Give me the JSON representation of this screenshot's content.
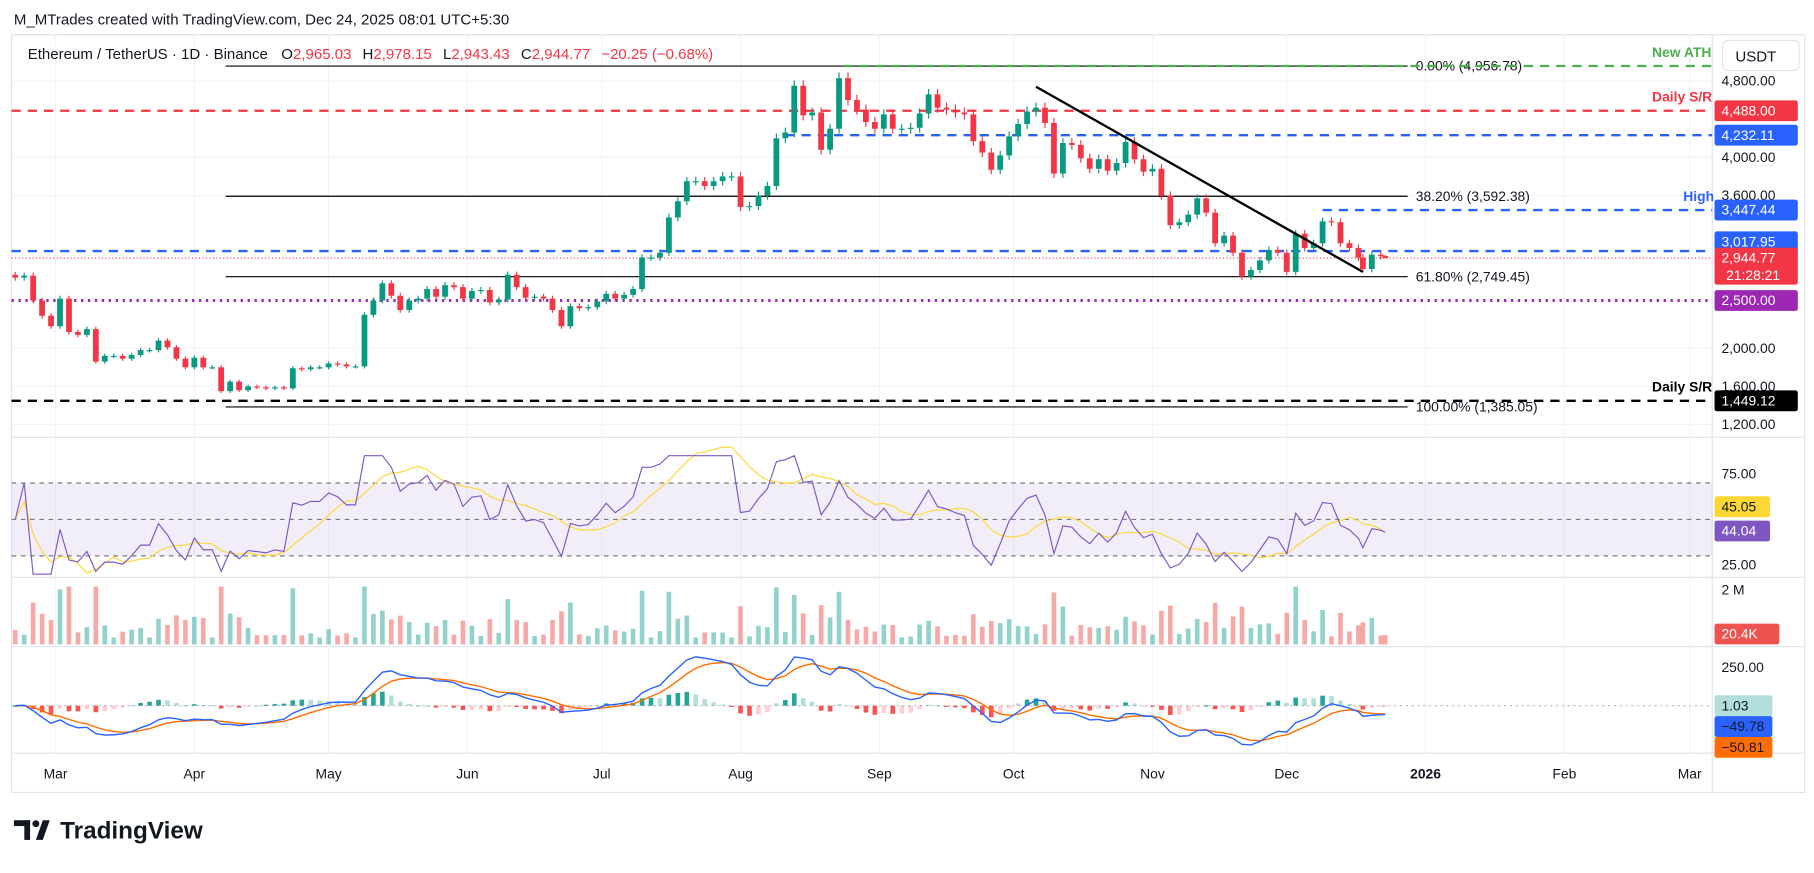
{
  "attribution": "M_MTrades created with TradingView.com, Dec 24, 2025 08:01 UTC+5:30",
  "legend": {
    "symbol": "Ethereum / TetherUS · 1D · Binance",
    "o_label": "O",
    "open": "2,965.03",
    "h_label": "H",
    "high": "2,978.15",
    "l_label": "L",
    "low": "2,943.43",
    "c_label": "C",
    "close": "2,944.77",
    "change": "−20.25 (−0.68%)"
  },
  "currency_button": "USDT",
  "logo": "TradingView",
  "colors": {
    "up": "#089981",
    "down": "#f23645",
    "blue": "#2962ff",
    "purple": "#9c27b0",
    "green": "#4caf50",
    "rsi": "#7e57c2",
    "rsi_ma": "#fdd835",
    "macd": "#2962ff",
    "signal": "#ff6d00"
  },
  "chart_data": {
    "type": "candlestick",
    "symbol": "ETH/USDT",
    "timeframe": "1D",
    "candles_close": [
      [
        "2025-02-20",
        2740
      ],
      [
        "2025-02-22",
        2760
      ],
      [
        "2025-02-24",
        2500
      ],
      [
        "2025-02-26",
        2340
      ],
      [
        "2025-02-28",
        2230
      ],
      [
        "2025-03-02",
        2520
      ],
      [
        "2025-03-04",
        2170
      ],
      [
        "2025-03-06",
        2140
      ],
      [
        "2025-03-08",
        2200
      ],
      [
        "2025-03-10",
        1860
      ],
      [
        "2025-03-12",
        1920
      ],
      [
        "2025-03-14",
        1920
      ],
      [
        "2025-03-16",
        1890
      ],
      [
        "2025-03-18",
        1930
      ],
      [
        "2025-03-20",
        1980
      ],
      [
        "2025-03-22",
        1980
      ],
      [
        "2025-03-24",
        2080
      ],
      [
        "2025-03-26",
        2010
      ],
      [
        "2025-03-28",
        1890
      ],
      [
        "2025-03-30",
        1800
      ],
      [
        "2025-04-01",
        1900
      ],
      [
        "2025-04-03",
        1800
      ],
      [
        "2025-04-05",
        1800
      ],
      [
        "2025-04-07",
        1550
      ],
      [
        "2025-04-09",
        1650
      ],
      [
        "2025-04-11",
        1560
      ],
      [
        "2025-04-13",
        1600
      ],
      [
        "2025-04-15",
        1590
      ],
      [
        "2025-04-17",
        1580
      ],
      [
        "2025-04-19",
        1590
      ],
      [
        "2025-04-21",
        1580
      ],
      [
        "2025-04-23",
        1790
      ],
      [
        "2025-04-25",
        1780
      ],
      [
        "2025-04-27",
        1800
      ],
      [
        "2025-04-29",
        1800
      ],
      [
        "2025-05-01",
        1840
      ],
      [
        "2025-05-03",
        1830
      ],
      [
        "2025-05-05",
        1810
      ],
      [
        "2025-05-07",
        1810
      ],
      [
        "2025-05-09",
        2350
      ],
      [
        "2025-05-11",
        2500
      ],
      [
        "2025-05-13",
        2680
      ],
      [
        "2025-05-15",
        2550
      ],
      [
        "2025-05-17",
        2400
      ],
      [
        "2025-05-19",
        2500
      ],
      [
        "2025-05-21",
        2520
      ],
      [
        "2025-05-23",
        2620
      ],
      [
        "2025-05-25",
        2540
      ],
      [
        "2025-05-27",
        2660
      ],
      [
        "2025-05-29",
        2640
      ],
      [
        "2025-05-31",
        2520
      ],
      [
        "2025-06-02",
        2600
      ],
      [
        "2025-06-04",
        2610
      ],
      [
        "2025-06-06",
        2480
      ],
      [
        "2025-06-08",
        2510
      ],
      [
        "2025-06-10",
        2770
      ],
      [
        "2025-06-12",
        2640
      ],
      [
        "2025-06-14",
        2530
      ],
      [
        "2025-06-16",
        2540
      ],
      [
        "2025-06-18",
        2520
      ],
      [
        "2025-06-20",
        2400
      ],
      [
        "2025-06-22",
        2230
      ],
      [
        "2025-06-24",
        2440
      ],
      [
        "2025-06-26",
        2420
      ],
      [
        "2025-06-28",
        2430
      ],
      [
        "2025-06-30",
        2490
      ],
      [
        "2025-07-02",
        2570
      ],
      [
        "2025-07-04",
        2520
      ],
      [
        "2025-07-06",
        2560
      ],
      [
        "2025-07-08",
        2620
      ],
      [
        "2025-07-10",
        2950
      ],
      [
        "2025-07-12",
        2950
      ],
      [
        "2025-07-14",
        3000
      ],
      [
        "2025-07-16",
        3370
      ],
      [
        "2025-07-18",
        3540
      ],
      [
        "2025-07-20",
        3750
      ],
      [
        "2025-07-22",
        3750
      ],
      [
        "2025-07-24",
        3700
      ],
      [
        "2025-07-26",
        3750
      ],
      [
        "2025-07-28",
        3800
      ],
      [
        "2025-07-30",
        3800
      ],
      [
        "2025-08-01",
        3480
      ],
      [
        "2025-08-03",
        3490
      ],
      [
        "2025-08-05",
        3600
      ],
      [
        "2025-08-07",
        3700
      ],
      [
        "2025-08-09",
        4200
      ],
      [
        "2025-08-11",
        4260
      ],
      [
        "2025-08-13",
        4750
      ],
      [
        "2025-08-15",
        4440
      ],
      [
        "2025-08-17",
        4470
      ],
      [
        "2025-08-19",
        4080
      ],
      [
        "2025-08-21",
        4300
      ],
      [
        "2025-08-23",
        4830
      ],
      [
        "2025-08-25",
        4600
      ],
      [
        "2025-08-27",
        4500
      ],
      [
        "2025-08-29",
        4370
      ],
      [
        "2025-08-31",
        4300
      ],
      [
        "2025-09-02",
        4450
      ],
      [
        "2025-09-04",
        4300
      ],
      [
        "2025-09-06",
        4300
      ],
      [
        "2025-09-08",
        4310
      ],
      [
        "2025-09-10",
        4460
      ],
      [
        "2025-09-12",
        4660
      ],
      [
        "2025-09-14",
        4520
      ],
      [
        "2025-09-16",
        4500
      ],
      [
        "2025-09-18",
        4470
      ],
      [
        "2025-09-20",
        4450
      ],
      [
        "2025-09-22",
        4170
      ],
      [
        "2025-09-24",
        4050
      ],
      [
        "2025-09-26",
        3870
      ],
      [
        "2025-09-28",
        4020
      ],
      [
        "2025-09-30",
        4220
      ],
      [
        "2025-10-02",
        4350
      ],
      [
        "2025-10-04",
        4480
      ],
      [
        "2025-10-06",
        4520
      ],
      [
        "2025-10-08",
        4360
      ],
      [
        "2025-10-10",
        3830
      ],
      [
        "2025-10-12",
        4150
      ],
      [
        "2025-10-14",
        4130
      ],
      [
        "2025-10-16",
        3990
      ],
      [
        "2025-10-18",
        3880
      ],
      [
        "2025-10-20",
        3980
      ],
      [
        "2025-10-22",
        3860
      ],
      [
        "2025-10-24",
        3940
      ],
      [
        "2025-10-26",
        4160
      ],
      [
        "2025-10-28",
        3980
      ],
      [
        "2025-10-30",
        3850
      ],
      [
        "2025-11-01",
        3880
      ],
      [
        "2025-11-03",
        3600
      ],
      [
        "2025-11-05",
        3290
      ],
      [
        "2025-11-07",
        3320
      ],
      [
        "2025-11-09",
        3400
      ],
      [
        "2025-11-11",
        3570
      ],
      [
        "2025-11-13",
        3420
      ],
      [
        "2025-11-15",
        3100
      ],
      [
        "2025-11-17",
        3180
      ],
      [
        "2025-11-19",
        3000
      ],
      [
        "2025-11-21",
        2750
      ],
      [
        "2025-11-23",
        2820
      ],
      [
        "2025-11-25",
        2920
      ],
      [
        "2025-11-27",
        3030
      ],
      [
        "2025-11-29",
        3000
      ],
      [
        "2025-12-01",
        2800
      ],
      [
        "2025-12-03",
        3200
      ],
      [
        "2025-12-05",
        3050
      ],
      [
        "2025-12-07",
        3100
      ],
      [
        "2025-12-09",
        3330
      ],
      [
        "2025-12-11",
        3320
      ],
      [
        "2025-12-13",
        3100
      ],
      [
        "2025-12-15",
        3050
      ],
      [
        "2025-12-17",
        2950
      ],
      [
        "2025-12-18",
        2830
      ],
      [
        "2025-12-20",
        2980
      ],
      [
        "2025-12-22",
        2965.03
      ],
      [
        "2025-12-23",
        2944.77
      ]
    ],
    "last_candle": {
      "open": 2965.03,
      "high": 2978.15,
      "low": 2943.43,
      "close": 2944.77
    },
    "price_axis": {
      "scale": "linear",
      "ticks": [
        {
          "value": 4800,
          "text": "4,800.00"
        },
        {
          "value": 4000,
          "text": "4,000.00"
        },
        {
          "value": 3600,
          "text": "3,600.00"
        },
        {
          "value": 2000,
          "text": "2,000.00"
        },
        {
          "value": 1600,
          "text": "1,600.00"
        },
        {
          "value": 1200,
          "text": "1,200.00"
        }
      ]
    },
    "time_axis": [
      {
        "date": "2025-03-01",
        "text": "Mar"
      },
      {
        "date": "2025-04-01",
        "text": "Apr"
      },
      {
        "date": "2025-05-01",
        "text": "May"
      },
      {
        "date": "2025-06-01",
        "text": "Jun"
      },
      {
        "date": "2025-07-01",
        "text": "Jul"
      },
      {
        "date": "2025-08-01",
        "text": "Aug"
      },
      {
        "date": "2025-09-01",
        "text": "Sep"
      },
      {
        "date": "2025-10-01",
        "text": "Oct"
      },
      {
        "date": "2025-11-01",
        "text": "Nov"
      },
      {
        "date": "2025-12-01",
        "text": "Dec"
      },
      {
        "date": "2026-01-01",
        "text": "2026"
      },
      {
        "date": "2026-02-01",
        "text": "Feb"
      },
      {
        "date": "2026-03-01",
        "text": "Mar"
      }
    ],
    "levels": [
      {
        "value": 4956.78,
        "text": "",
        "note": "New ATH",
        "color": "#4caf50",
        "style": "dashed",
        "start": "2025-08-24"
      },
      {
        "value": 4488.0,
        "text": "4,488.00",
        "note": "Daily S/R",
        "color": "#f23645",
        "style": "dashed",
        "start": null
      },
      {
        "value": 4232.11,
        "text": "4,232.11",
        "note": "",
        "color": "#2962ff",
        "style": "dashed",
        "start": "2025-08-11"
      },
      {
        "value": 3447.44,
        "text": "3,447.44",
        "note": "High",
        "color": "#2962ff",
        "style": "dashed",
        "start": "2025-12-09"
      },
      {
        "value": 3017.95,
        "text": "3,017.95",
        "note": "",
        "color": "#2962ff",
        "style": "dashed",
        "start": null
      },
      {
        "value": 2944.77,
        "text": "2,944.77",
        "note": "",
        "color": "#f23645",
        "style": "dotted",
        "start": null,
        "countdown": "21:28:21"
      },
      {
        "value": 2500.0,
        "text": "2,500.00",
        "note": "",
        "color": "#9c27b0",
        "style": "dotted",
        "start": null
      },
      {
        "value": 1449.12,
        "text": "1,449.12",
        "note": "Daily S/R",
        "color": "#000000",
        "style": "dashed",
        "start": null
      }
    ],
    "fibonacci": {
      "range": [
        "2025-04-08",
        "2025-12-28"
      ],
      "levels": [
        {
          "value": 4956.78,
          "text": "0.00% (4,956.78)"
        },
        {
          "value": 3592.38,
          "text": "38.20% (3,592.38)"
        },
        {
          "value": 2749.45,
          "text": "61.80% (2,749.45)"
        },
        {
          "value": 1385.05,
          "text": "100.00% (1,385.05)"
        }
      ]
    },
    "trendline": {
      "from": [
        "2025-10-06",
        4740
      ],
      "to": [
        "2025-12-18",
        2800
      ]
    },
    "rsi": {
      "ticks": [
        {
          "value": 75,
          "text": "75.00"
        },
        {
          "value": 25,
          "text": "25.00"
        }
      ],
      "band": [
        30,
        70
      ],
      "value_text": "44.04",
      "ma_text": "45.05"
    },
    "volume": {
      "tick": "2 M",
      "last_text": "20.4K"
    },
    "macd": {
      "tick": "250.00",
      "histogram_text": "1.03",
      "macd_text": "−49.78",
      "signal_text": "−50.81"
    }
  }
}
